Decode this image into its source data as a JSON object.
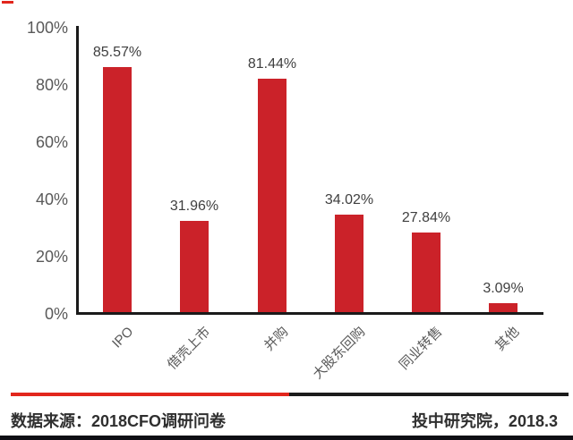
{
  "chart_data": {
    "type": "bar",
    "title": "",
    "categories": [
      "IPO",
      "借壳上市",
      "并购",
      "大股东回购",
      "同业转售",
      "其他"
    ],
    "values": [
      85.57,
      31.96,
      81.44,
      34.02,
      27.84,
      3.09
    ],
    "value_labels": [
      "85.57%",
      "31.96%",
      "81.44%",
      "34.02%",
      "27.84%",
      "3.09%"
    ],
    "y_ticks": [
      "100%",
      "80%",
      "60%",
      "40%",
      "20%",
      "0%"
    ],
    "ylim": [
      0,
      100
    ],
    "xlabel": "",
    "ylabel": "",
    "grid": false,
    "legend_position": "none",
    "bar_color": "#cb2229"
  },
  "footer": {
    "source": "数据来源：2018CFO调研问卷",
    "attribution": "投中研究院，2018.3"
  },
  "colors": {
    "bar": "#cb2229",
    "divider_red": "#e2261d",
    "divider_dark": "#1c1c1c",
    "bottom_bar": "#0e0e14",
    "axis": "#1a1a1a",
    "tick_text": "#595959",
    "value_text": "#3f3f3f"
  }
}
